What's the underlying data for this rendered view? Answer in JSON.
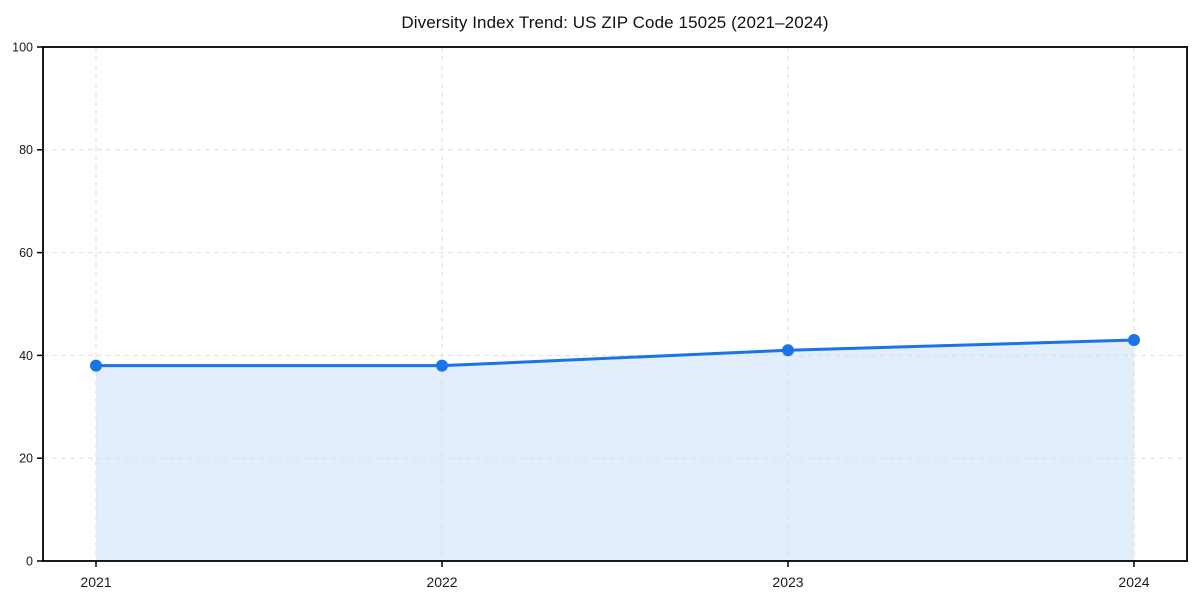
{
  "chart_data": {
    "type": "area",
    "title": "Diversity Index Trend: US ZIP Code 15025 (2021–2024)",
    "series_name": "Diversity Index",
    "categories": [
      "2021",
      "2022",
      "2023",
      "2024"
    ],
    "values": [
      38,
      38,
      41,
      43
    ],
    "xlabel": "",
    "ylabel": "",
    "ylim": [
      0,
      100
    ],
    "yticks": [
      0,
      20,
      40,
      60,
      80,
      100
    ],
    "grid": "dashed",
    "legend_position": "none",
    "colors": {
      "line": "#1a73e8",
      "marker": "#1a73e8",
      "fill": "rgba(26,115,232,0.12)",
      "grid": "#dedede",
      "spine": "#000000",
      "tick_text": "#1a1a1a",
      "background": "#ffffff"
    }
  }
}
